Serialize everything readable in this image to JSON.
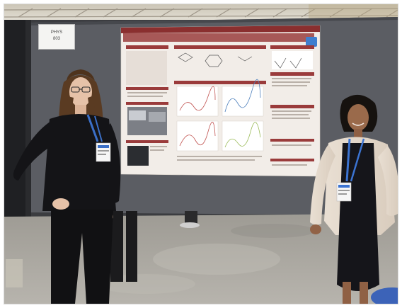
{
  "scene": {
    "description_free": true,
    "colors": {
      "poster_board": "#5e6066",
      "poster_background": "#f3eeea",
      "poster_header": "#8a2f2f",
      "section_header": "#9a3b3b",
      "floor": "#a7a49c",
      "ceiling": "#dcd6c8",
      "curtain": "#2d2d30"
    },
    "board_placard": {
      "line1": "PHYS",
      "line2": "803"
    }
  }
}
